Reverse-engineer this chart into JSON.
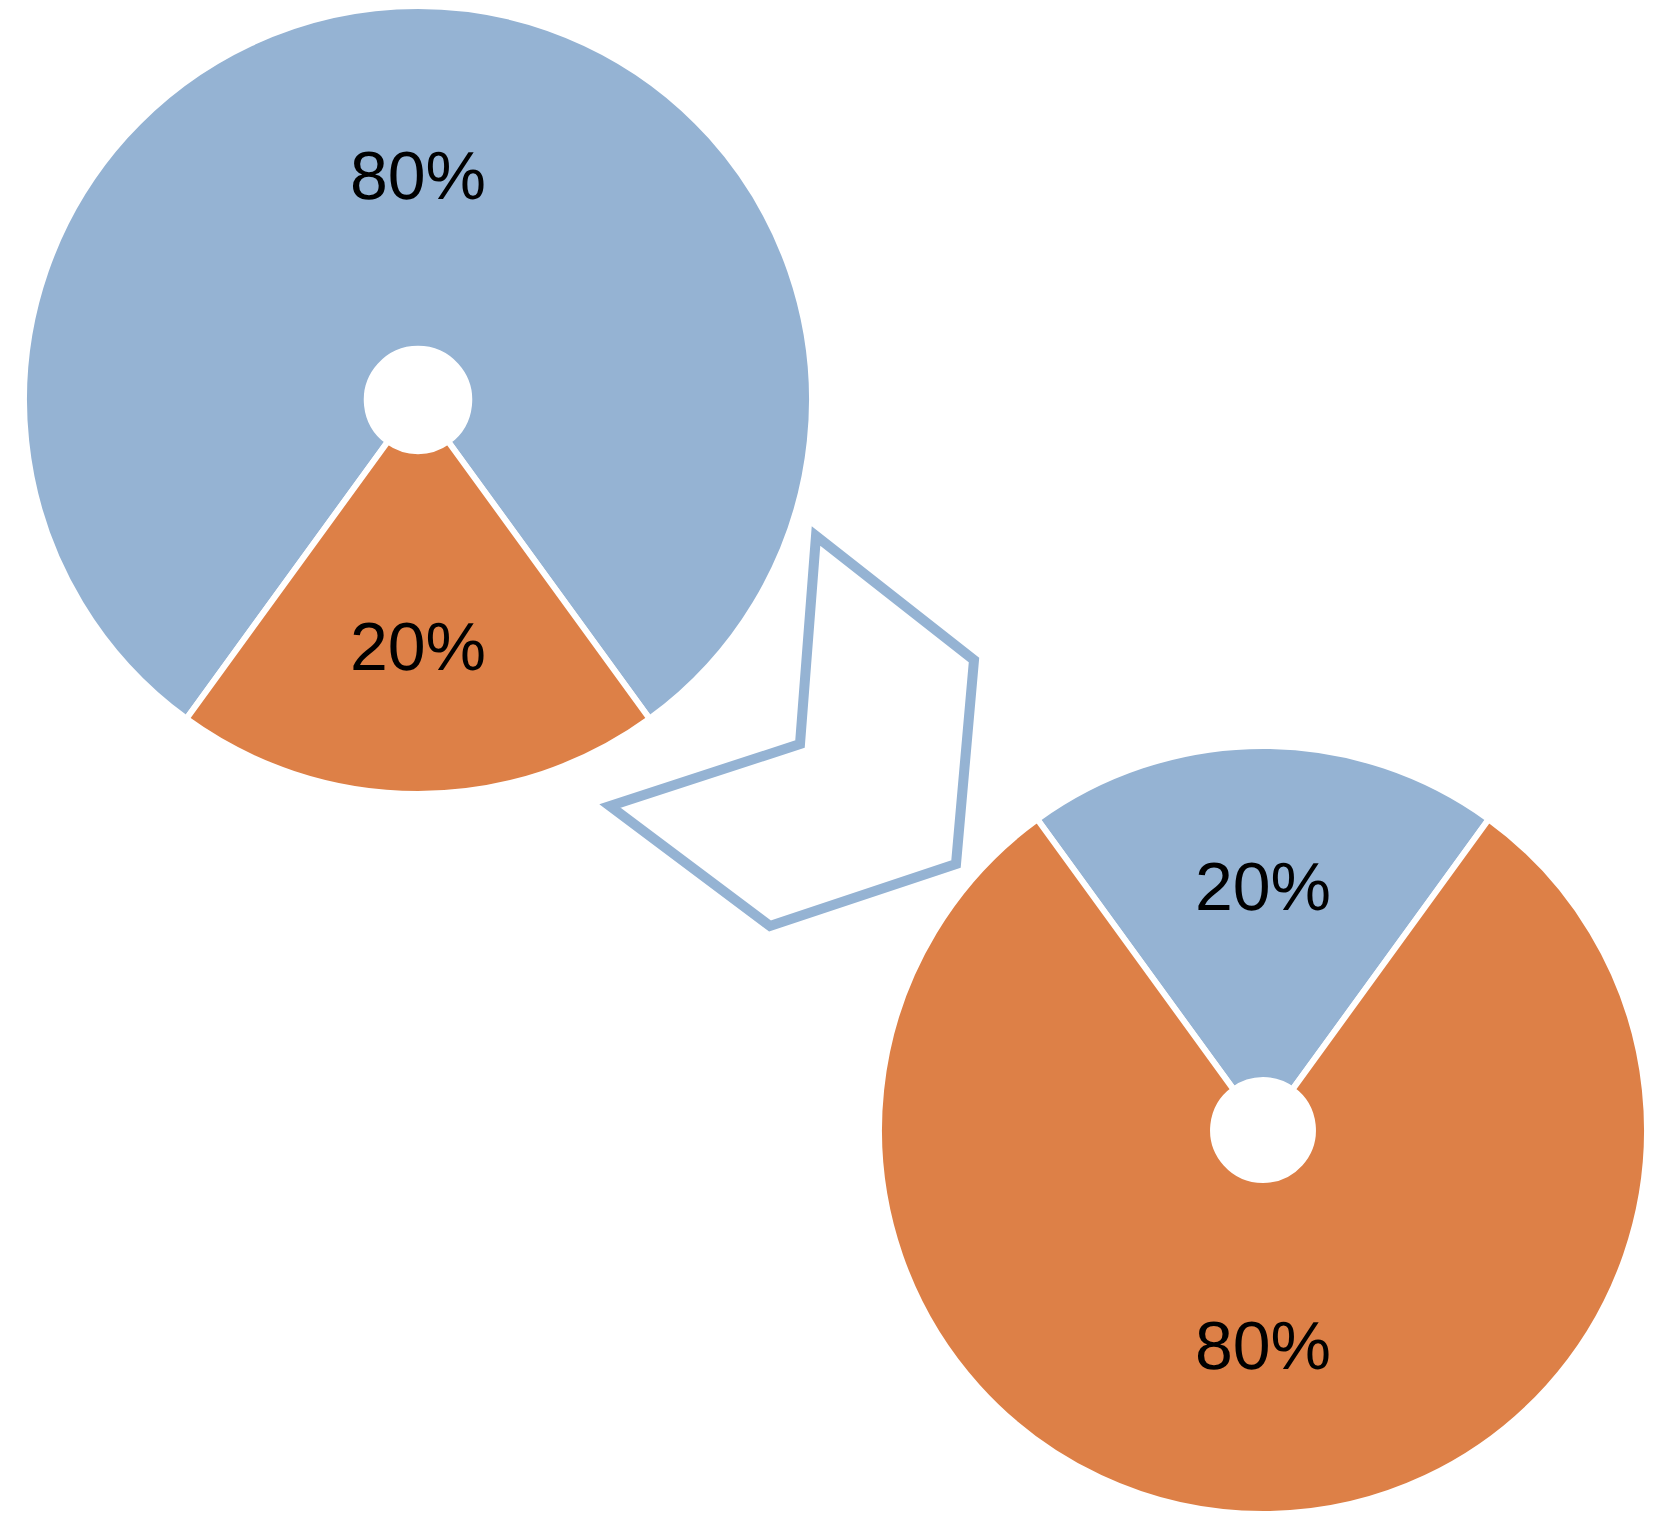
{
  "chart_data": [
    {
      "type": "donut",
      "categories": [
        null,
        null
      ],
      "values": [
        80,
        20
      ],
      "colors": [
        "#95b3d3",
        "#dd8047"
      ],
      "value_labels": [
        "80%",
        "20%"
      ]
    },
    {
      "type": "donut",
      "categories": [
        null,
        null
      ],
      "values": [
        20,
        80
      ],
      "colors": [
        "#95b3d3",
        "#dd8047"
      ],
      "value_labels": [
        "20%",
        "80%"
      ]
    }
  ]
}
